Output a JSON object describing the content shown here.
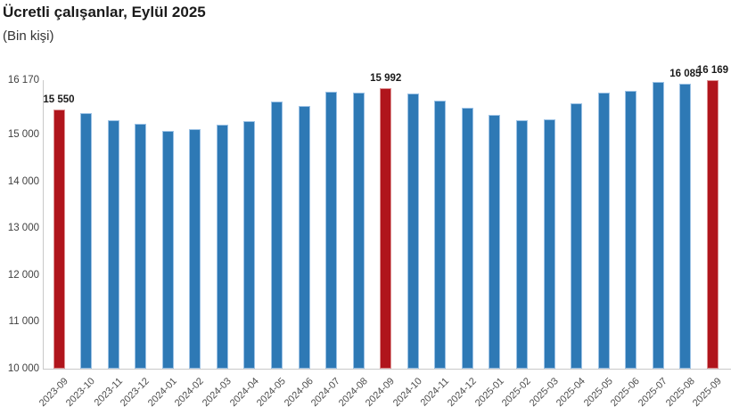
{
  "header": {
    "title": "Ücretli çalışanlar, Eylül 2025",
    "subtitle": "(Bin kişi)"
  },
  "colors": {
    "bar_blue": "#2e79b5",
    "bar_blue_border": "#9cc2e5",
    "bar_red": "#b0151c",
    "bar_red_border": "#dd9092",
    "axis_line": "#c9c9c9",
    "tick_text": "#404040",
    "title_text": "#1a1a1a"
  },
  "chart_data": {
    "type": "bar",
    "title": "Ücretli çalışanlar, Eylül 2025",
    "subtitle": "(Bin kişi)",
    "xlabel": "",
    "ylabel": "",
    "ylim": [
      10000,
      16170
    ],
    "grid": false,
    "legend": false,
    "y_ticks": [
      {
        "value": 16170,
        "label": "16 170"
      },
      {
        "value": 15000,
        "label": "15 000"
      },
      {
        "value": 14000,
        "label": "14 000"
      },
      {
        "value": 13000,
        "label": "13 000"
      },
      {
        "value": 12000,
        "label": "12 000"
      },
      {
        "value": 11000,
        "label": "11 000"
      },
      {
        "value": 10000,
        "label": "10 000"
      }
    ],
    "bars": [
      {
        "month": "2023-09",
        "value": 15550,
        "label": "15 550",
        "highlight": true
      },
      {
        "month": "2023-10",
        "value": 15460
      },
      {
        "month": "2023-11",
        "value": 15320
      },
      {
        "month": "2023-12",
        "value": 15240
      },
      {
        "month": "2024-01",
        "value": 15080
      },
      {
        "month": "2024-02",
        "value": 15130
      },
      {
        "month": "2024-03",
        "value": 15220
      },
      {
        "month": "2024-04",
        "value": 15290
      },
      {
        "month": "2024-05",
        "value": 15720
      },
      {
        "month": "2024-06",
        "value": 15610
      },
      {
        "month": "2024-07",
        "value": 15920
      },
      {
        "month": "2024-08",
        "value": 15900
      },
      {
        "month": "2024-09",
        "value": 15992,
        "label": "15 992",
        "highlight": true
      },
      {
        "month": "2024-10",
        "value": 15880
      },
      {
        "month": "2024-11",
        "value": 15740
      },
      {
        "month": "2024-12",
        "value": 15580
      },
      {
        "month": "2025-01",
        "value": 15420
      },
      {
        "month": "2025-02",
        "value": 15310
      },
      {
        "month": "2025-03",
        "value": 15330
      },
      {
        "month": "2025-04",
        "value": 15670
      },
      {
        "month": "2025-05",
        "value": 15900
      },
      {
        "month": "2025-06",
        "value": 15950
      },
      {
        "month": "2025-07",
        "value": 16140
      },
      {
        "month": "2025-08",
        "value": 16085,
        "label": "16 085"
      },
      {
        "month": "2025-09",
        "value": 16169,
        "label": "16 169",
        "highlight": true
      }
    ]
  }
}
